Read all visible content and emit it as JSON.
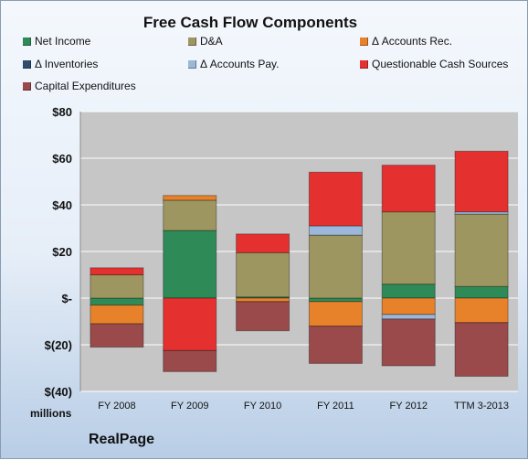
{
  "chart_data": {
    "type": "bar",
    "stacked": true,
    "title": "Free Cash Flow Components",
    "categories": [
      "FY 2008",
      "FY 2009",
      "FY 2010",
      "FY 2011",
      "FY 2012",
      "TTM 3-2013"
    ],
    "ylim": [
      -40,
      80
    ],
    "yticks": [
      -40,
      -20,
      0,
      20,
      40,
      60,
      80
    ],
    "ytick_labels": [
      "$(40)",
      "$(20)",
      "$-",
      "$20",
      "$40",
      "$60",
      "$80"
    ],
    "unit_label": "millions",
    "grid": true,
    "legend_position": "top",
    "series": [
      {
        "name": "Net Income",
        "color": "#2e8b57",
        "values": [
          -3,
          29,
          0.5,
          -1.5,
          6,
          5
        ]
      },
      {
        "name": "D&A",
        "color": "#9e9660",
        "values": [
          10,
          13,
          19,
          27,
          31,
          31
        ]
      },
      {
        "name": "Δ Accounts Rec.",
        "color": "#e8822a",
        "values": [
          -8,
          2,
          -1.5,
          -10.5,
          -7,
          -10.5
        ]
      },
      {
        "name": "Δ Inventories",
        "color": "#2f4b6e",
        "values": [
          0,
          0,
          0,
          0,
          0,
          0
        ]
      },
      {
        "name": "Δ Accounts Pay.",
        "color": "#9bb7da",
        "values": [
          0,
          0,
          0,
          4,
          -2,
          1
        ]
      },
      {
        "name": "Questionable Cash Sources",
        "color": "#e53030",
        "values": [
          3,
          -22.5,
          8,
          23,
          20,
          26
        ]
      },
      {
        "name": "Capital Expenditures",
        "color": "#9a4a4a",
        "values": [
          -10,
          -9,
          -12.5,
          -16,
          -20,
          -23
        ]
      }
    ]
  },
  "footer": {
    "company": "RealPage"
  }
}
